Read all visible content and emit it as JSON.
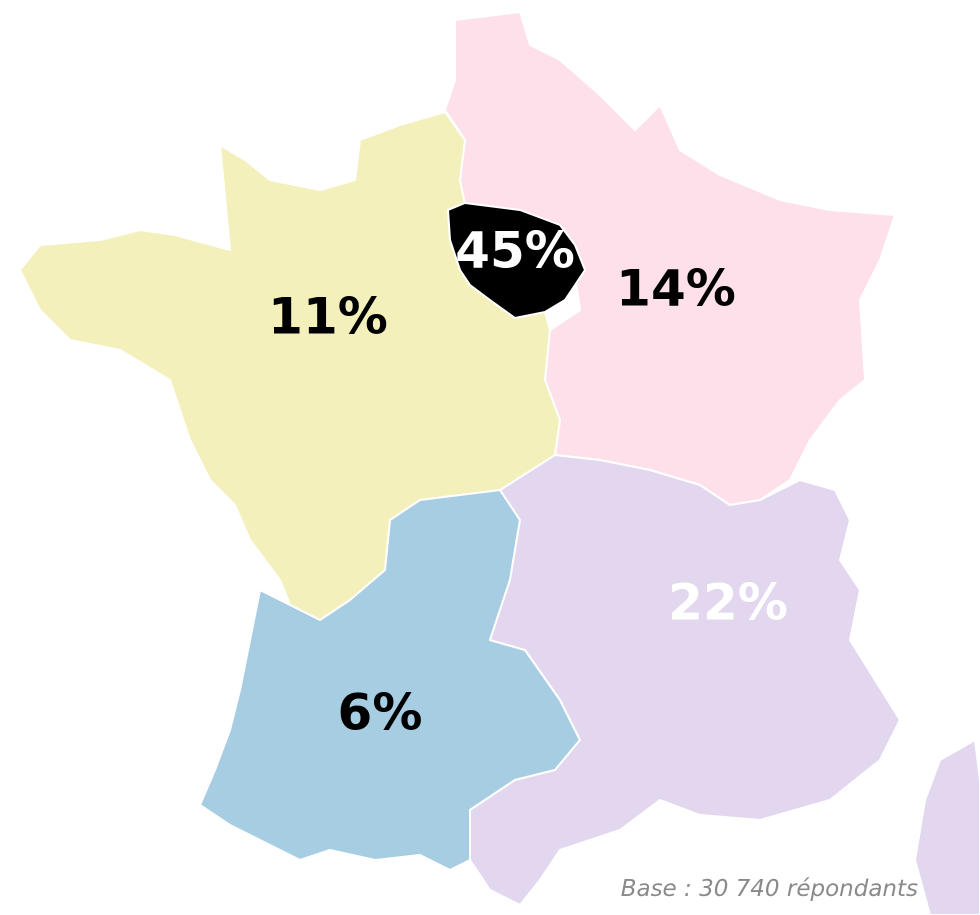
{
  "map": {
    "regions": [
      {
        "label": "14%",
        "color": "#fde0ea",
        "text_color": "#000000"
      },
      {
        "label": "11%",
        "color": "#f3f0bb",
        "text_color": "#000000"
      },
      {
        "label": "6%",
        "color": "#a7cde2",
        "text_color": "#000000"
      },
      {
        "label": "22%",
        "color": "#e3d7f0",
        "text_color": "#ffffff"
      },
      {
        "label": "45%",
        "color": "#000000",
        "text_color": "#ffffff"
      }
    ],
    "footnote": "Base : 30 740 répondants"
  }
}
